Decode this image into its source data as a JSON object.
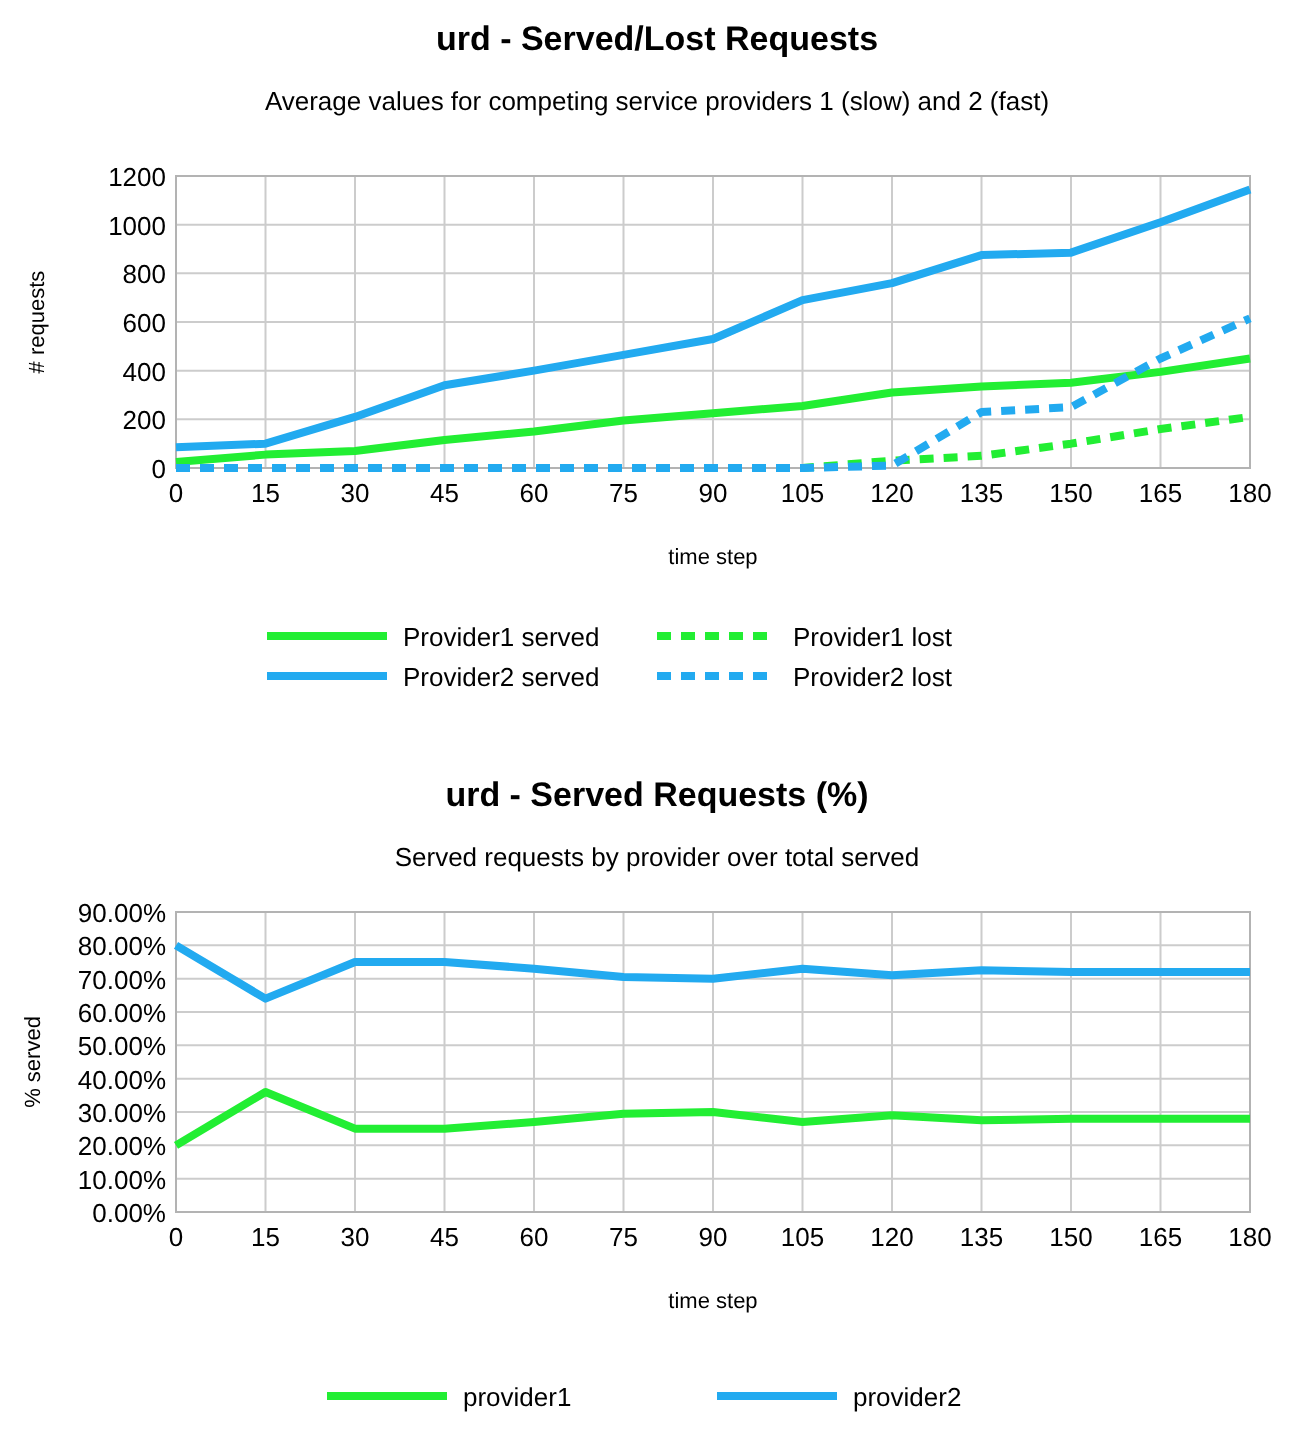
{
  "chart_data": [
    {
      "type": "line",
      "title": "urd - Served/Lost Requests",
      "subtitle": "Average values for competing service providers 1 (slow) and 2 (fast)",
      "xlabel": "time step",
      "ylabel": "# requests",
      "x": [
        0,
        15,
        30,
        45,
        60,
        75,
        90,
        105,
        120,
        135,
        150,
        165,
        180
      ],
      "series": [
        {
          "name": "Provider1 served",
          "color": "#22ee33",
          "line_style": "solid",
          "values": [
            25,
            55,
            70,
            115,
            150,
            195,
            225,
            255,
            310,
            335,
            350,
            395,
            450
          ]
        },
        {
          "name": "Provider1 lost",
          "color": "#22ee33",
          "line_style": "dashed",
          "values": [
            0,
            0,
            0,
            0,
            0,
            0,
            0,
            0,
            30,
            50,
            100,
            160,
            210
          ]
        },
        {
          "name": "Provider2 served",
          "color": "#22aaf0",
          "line_style": "solid",
          "values": [
            85,
            100,
            210,
            340,
            400,
            465,
            530,
            690,
            760,
            875,
            885,
            1010,
            1145
          ]
        },
        {
          "name": "Provider2 lost",
          "color": "#22aaf0",
          "line_style": "dashed",
          "values": [
            0,
            0,
            0,
            0,
            0,
            0,
            0,
            0,
            10,
            230,
            250,
            450,
            615
          ]
        }
      ],
      "xlim": [
        0,
        180
      ],
      "xticks": [
        0,
        15,
        30,
        45,
        60,
        75,
        90,
        105,
        120,
        135,
        150,
        165,
        180
      ],
      "ylim": [
        0,
        1200
      ],
      "yticks": [
        0,
        200,
        400,
        600,
        800,
        1000,
        1200
      ],
      "grid": true,
      "legend": "bottom",
      "marker": "none"
    },
    {
      "type": "line",
      "title": "urd - Served Requests (%)",
      "subtitle": "Served requests by provider over total served",
      "xlabel": "time step",
      "ylabel": "% served",
      "x": [
        0,
        15,
        30,
        45,
        60,
        75,
        90,
        105,
        120,
        135,
        150,
        165,
        180
      ],
      "series": [
        {
          "name": "provider1",
          "color": "#22ee33",
          "line_style": "solid",
          "values": [
            20,
            36,
            25,
            25,
            27,
            29.5,
            30,
            27,
            29,
            27.5,
            28,
            28,
            28
          ]
        },
        {
          "name": "provider2",
          "color": "#22aaf0",
          "line_style": "solid",
          "values": [
            80,
            64,
            75,
            75,
            73,
            70.5,
            70,
            73,
            71,
            72.5,
            72,
            72,
            72
          ]
        }
      ],
      "xlim": [
        0,
        180
      ],
      "xticks": [
        0,
        15,
        30,
        45,
        60,
        75,
        90,
        105,
        120,
        135,
        150,
        165,
        180
      ],
      "ylim": [
        0,
        90
      ],
      "yticks": [
        {
          "value": 0,
          "label": "0.00%"
        },
        {
          "value": 10,
          "label": "10.00%"
        },
        {
          "value": 20,
          "label": "20.00%"
        },
        {
          "value": 30,
          "label": "30.00%"
        },
        {
          "value": 40,
          "label": "40.00%"
        },
        {
          "value": 50,
          "label": "50.00%"
        },
        {
          "value": 60,
          "label": "60.00%"
        },
        {
          "value": 70,
          "label": "70.00%"
        },
        {
          "value": 80,
          "label": "80.00%"
        },
        {
          "value": 90,
          "label": "90.00%"
        }
      ],
      "grid": true,
      "legend": "bottom",
      "marker": "none"
    }
  ]
}
